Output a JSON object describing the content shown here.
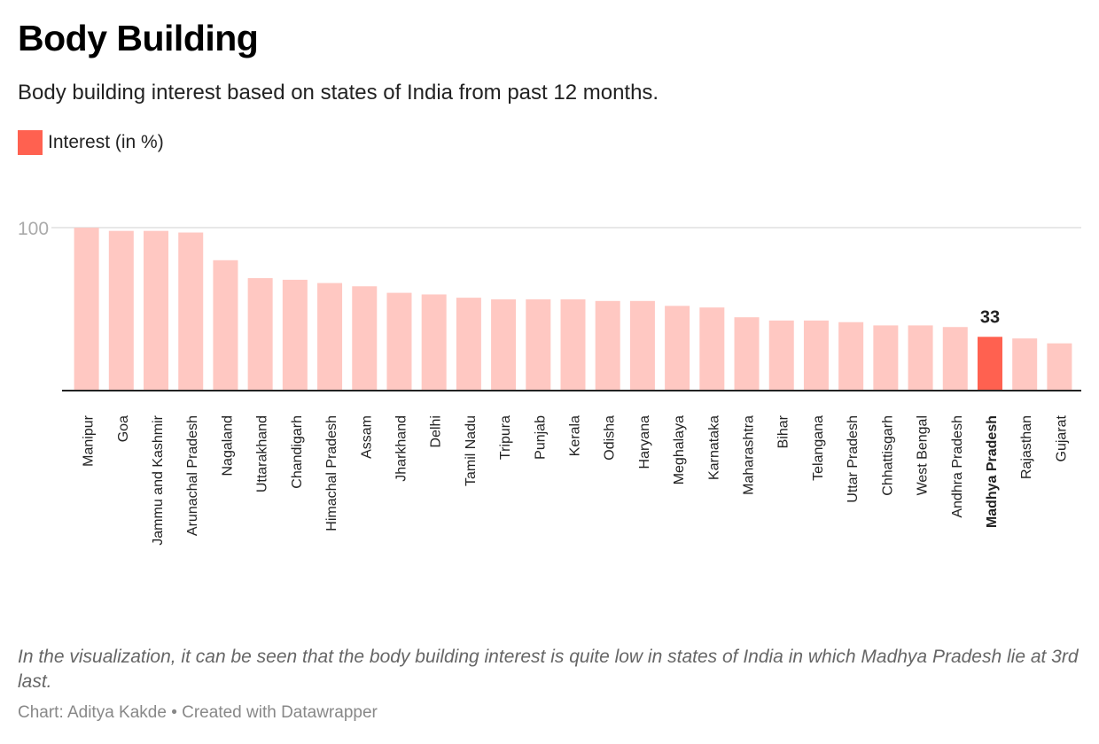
{
  "header": {
    "title": "Body Building",
    "subtitle": "Body building interest based on states of India from past 12 months."
  },
  "legend": {
    "label": "Interest (in %)",
    "color": "#ff6150"
  },
  "colors": {
    "bar": "#ffc8c2",
    "highlight": "#ff6150",
    "grid": "#e0e0e0",
    "axis": "#222222",
    "tick_label": "#aaaaaa"
  },
  "chart_data": {
    "type": "bar",
    "categories": [
      "Manipur",
      "Goa",
      "Jammu and Kashmir",
      "Arunachal Pradesh",
      "Nagaland",
      "Uttarakhand",
      "Chandigarh",
      "Himachal Pradesh",
      "Assam",
      "Jharkhand",
      "Delhi",
      "Tamil Nadu",
      "Tripura",
      "Punjab",
      "Kerala",
      "Odisha",
      "Haryana",
      "Meghalaya",
      "Karnataka",
      "Maharashtra",
      "Bihar",
      "Telangana",
      "Uttar Pradesh",
      "Chhattisgarh",
      "West Bengal",
      "Andhra Pradesh",
      "Madhya Pradesh",
      "Rajasthan",
      "Gujarat"
    ],
    "series": [
      {
        "name": "Interest (in %)",
        "values": [
          100,
          98,
          98,
          97,
          80,
          69,
          68,
          66,
          64,
          60,
          59,
          57,
          56,
          56,
          56,
          55,
          55,
          52,
          51,
          45,
          43,
          43,
          42,
          40,
          40,
          39,
          33,
          32,
          29
        ]
      }
    ],
    "highlight": {
      "category": "Madhya Pradesh",
      "label": "33"
    },
    "ylim": [
      0,
      100
    ],
    "yticks": [
      100
    ],
    "grid": true,
    "legend_position": "top-left"
  },
  "notes": "In the visualization, it can be seen that the body building interest is quite low in states of India in which Madhya Pradesh lie at 3rd last.",
  "byline": "Chart: Aditya Kakde • Created with Datawrapper"
}
